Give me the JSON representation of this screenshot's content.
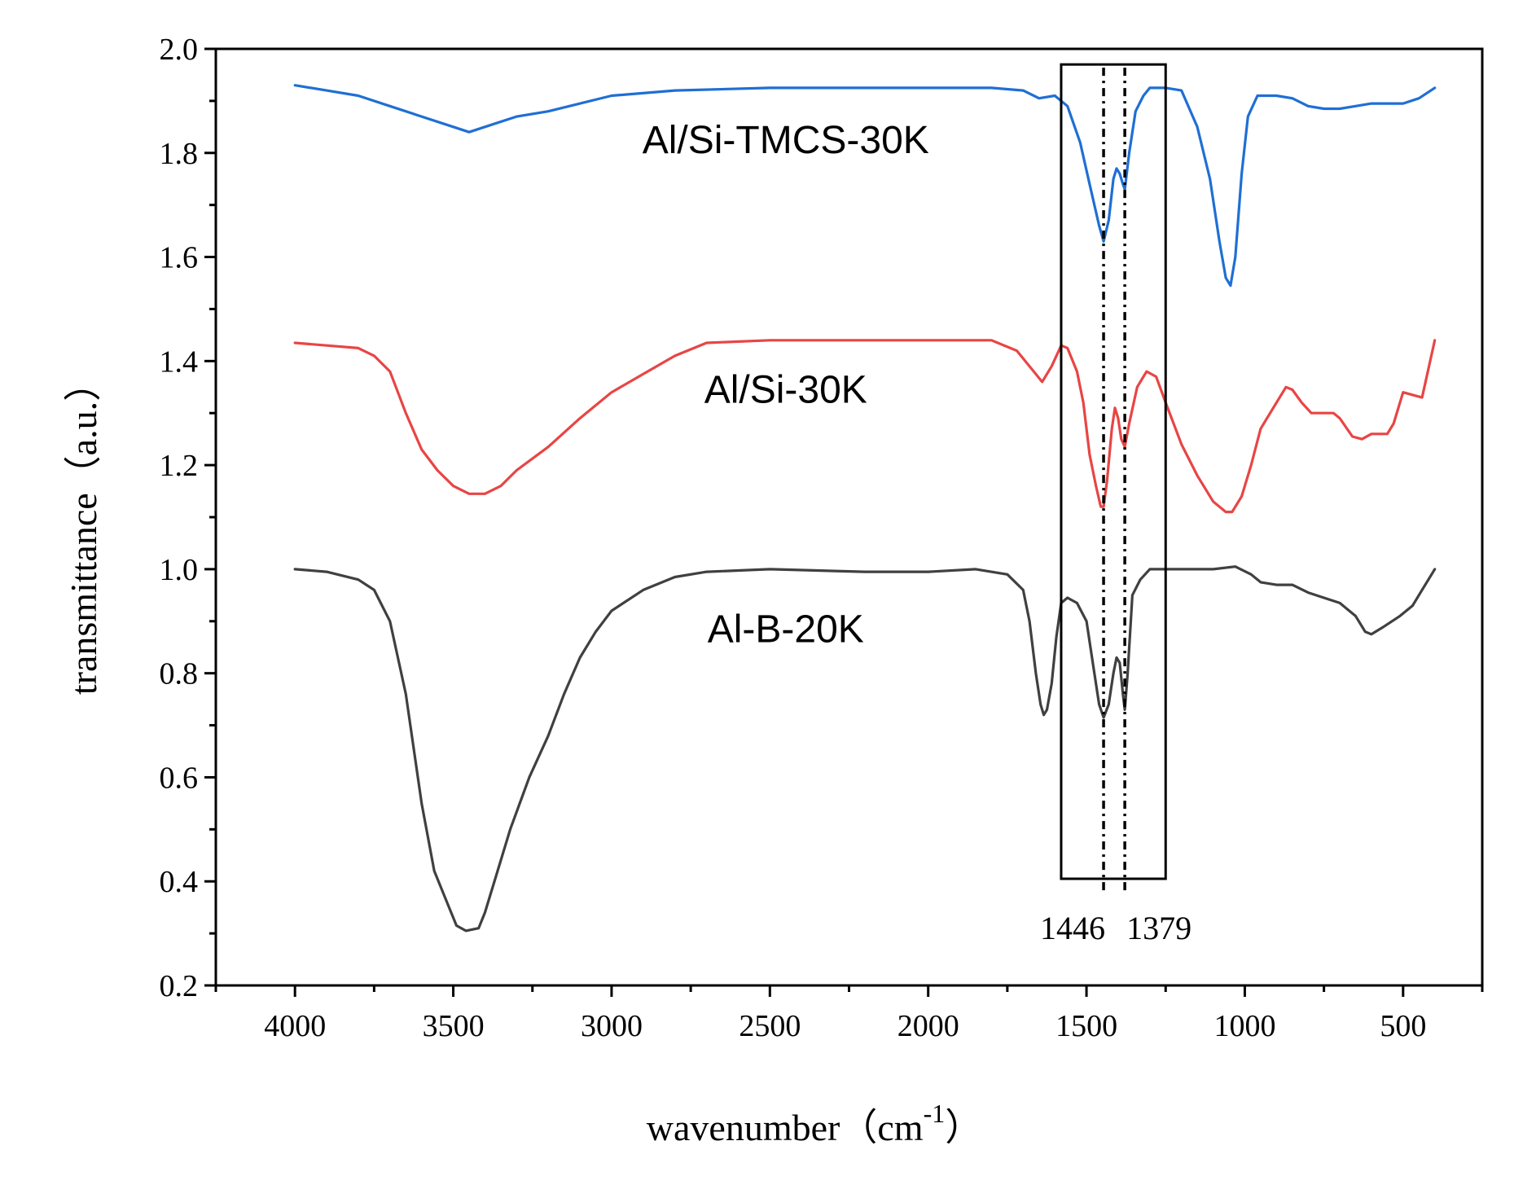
{
  "chart_data": {
    "type": "line",
    "title": "",
    "xlabel": "wavenumber（cm",
    "xlabel_sup": "-1",
    "xlabel_close": "）",
    "ylabel": "transmittance（a.u.）",
    "xlim": [
      4250,
      250
    ],
    "ylim": [
      0.2,
      2.0
    ],
    "x_ticks": [
      4000,
      3500,
      3000,
      2500,
      2000,
      1500,
      1000,
      500
    ],
    "x_tick_labels": [
      "4000",
      "3500",
      "3000",
      "2500",
      "2000",
      "1500",
      "1000",
      "500"
    ],
    "y_ticks": [
      0.2,
      0.4,
      0.6,
      0.8,
      1.0,
      1.2,
      1.4,
      1.6,
      1.8,
      2.0
    ],
    "y_tick_labels": [
      "0.2",
      "0.4",
      "0.6",
      "0.8",
      "1.0",
      "1.2",
      "1.4",
      "1.6",
      "1.8",
      "2.0"
    ],
    "grid": false,
    "series": [
      {
        "name": "Al/Si-TMCS-30K",
        "color": "#1f6fd4",
        "label_at": [
          2450,
          1.8
        ],
        "points": [
          [
            4000,
            1.93
          ],
          [
            3900,
            1.92
          ],
          [
            3800,
            1.91
          ],
          [
            3700,
            1.89
          ],
          [
            3600,
            1.87
          ],
          [
            3500,
            1.85
          ],
          [
            3450,
            1.84
          ],
          [
            3400,
            1.85
          ],
          [
            3300,
            1.87
          ],
          [
            3200,
            1.88
          ],
          [
            3000,
            1.91
          ],
          [
            2800,
            1.92
          ],
          [
            2500,
            1.925
          ],
          [
            2200,
            1.925
          ],
          [
            2000,
            1.925
          ],
          [
            1800,
            1.925
          ],
          [
            1700,
            1.92
          ],
          [
            1650,
            1.905
          ],
          [
            1600,
            1.91
          ],
          [
            1560,
            1.89
          ],
          [
            1520,
            1.82
          ],
          [
            1490,
            1.74
          ],
          [
            1460,
            1.66
          ],
          [
            1446,
            1.63
          ],
          [
            1430,
            1.67
          ],
          [
            1415,
            1.75
          ],
          [
            1405,
            1.77
          ],
          [
            1395,
            1.76
          ],
          [
            1385,
            1.74
          ],
          [
            1379,
            1.73
          ],
          [
            1365,
            1.8
          ],
          [
            1345,
            1.88
          ],
          [
            1320,
            1.91
          ],
          [
            1300,
            1.925
          ],
          [
            1250,
            1.925
          ],
          [
            1200,
            1.92
          ],
          [
            1150,
            1.85
          ],
          [
            1110,
            1.75
          ],
          [
            1080,
            1.63
          ],
          [
            1060,
            1.56
          ],
          [
            1045,
            1.545
          ],
          [
            1030,
            1.6
          ],
          [
            1010,
            1.76
          ],
          [
            990,
            1.87
          ],
          [
            960,
            1.91
          ],
          [
            900,
            1.91
          ],
          [
            850,
            1.905
          ],
          [
            800,
            1.89
          ],
          [
            750,
            1.885
          ],
          [
            700,
            1.885
          ],
          [
            650,
            1.89
          ],
          [
            600,
            1.895
          ],
          [
            500,
            1.895
          ],
          [
            450,
            1.905
          ],
          [
            400,
            1.925
          ]
        ]
      },
      {
        "name": "Al/Si-30K",
        "color": "#e84545",
        "label_at": [
          2450,
          1.32
        ],
        "points": [
          [
            4000,
            1.435
          ],
          [
            3900,
            1.43
          ],
          [
            3800,
            1.425
          ],
          [
            3750,
            1.41
          ],
          [
            3700,
            1.38
          ],
          [
            3650,
            1.3
          ],
          [
            3600,
            1.23
          ],
          [
            3550,
            1.19
          ],
          [
            3500,
            1.16
          ],
          [
            3450,
            1.145
          ],
          [
            3400,
            1.145
          ],
          [
            3350,
            1.16
          ],
          [
            3300,
            1.19
          ],
          [
            3200,
            1.235
          ],
          [
            3100,
            1.29
          ],
          [
            3000,
            1.34
          ],
          [
            2900,
            1.375
          ],
          [
            2800,
            1.41
          ],
          [
            2700,
            1.435
          ],
          [
            2500,
            1.44
          ],
          [
            2200,
            1.44
          ],
          [
            2000,
            1.44
          ],
          [
            1800,
            1.44
          ],
          [
            1720,
            1.42
          ],
          [
            1680,
            1.39
          ],
          [
            1640,
            1.36
          ],
          [
            1610,
            1.39
          ],
          [
            1580,
            1.43
          ],
          [
            1560,
            1.425
          ],
          [
            1530,
            1.38
          ],
          [
            1510,
            1.32
          ],
          [
            1490,
            1.22
          ],
          [
            1470,
            1.16
          ],
          [
            1455,
            1.12
          ],
          [
            1446,
            1.12
          ],
          [
            1435,
            1.17
          ],
          [
            1420,
            1.27
          ],
          [
            1410,
            1.31
          ],
          [
            1400,
            1.29
          ],
          [
            1390,
            1.25
          ],
          [
            1379,
            1.235
          ],
          [
            1365,
            1.28
          ],
          [
            1340,
            1.35
          ],
          [
            1310,
            1.38
          ],
          [
            1280,
            1.37
          ],
          [
            1250,
            1.32
          ],
          [
            1200,
            1.24
          ],
          [
            1150,
            1.18
          ],
          [
            1100,
            1.13
          ],
          [
            1060,
            1.11
          ],
          [
            1040,
            1.11
          ],
          [
            1010,
            1.14
          ],
          [
            980,
            1.2
          ],
          [
            950,
            1.27
          ],
          [
            900,
            1.32
          ],
          [
            870,
            1.35
          ],
          [
            850,
            1.345
          ],
          [
            820,
            1.32
          ],
          [
            790,
            1.3
          ],
          [
            720,
            1.3
          ],
          [
            700,
            1.29
          ],
          [
            660,
            1.255
          ],
          [
            630,
            1.25
          ],
          [
            600,
            1.26
          ],
          [
            550,
            1.26
          ],
          [
            530,
            1.28
          ],
          [
            500,
            1.34
          ],
          [
            470,
            1.335
          ],
          [
            440,
            1.33
          ],
          [
            400,
            1.44
          ]
        ]
      },
      {
        "name": "Al-B-20K",
        "color": "#404040",
        "label_at": [
          2450,
          0.86
        ],
        "points": [
          [
            4000,
            1.0
          ],
          [
            3900,
            0.995
          ],
          [
            3800,
            0.98
          ],
          [
            3750,
            0.96
          ],
          [
            3700,
            0.9
          ],
          [
            3650,
            0.76
          ],
          [
            3600,
            0.55
          ],
          [
            3560,
            0.42
          ],
          [
            3520,
            0.36
          ],
          [
            3490,
            0.315
          ],
          [
            3460,
            0.305
          ],
          [
            3420,
            0.31
          ],
          [
            3400,
            0.34
          ],
          [
            3360,
            0.42
          ],
          [
            3320,
            0.5
          ],
          [
            3260,
            0.6
          ],
          [
            3200,
            0.68
          ],
          [
            3150,
            0.76
          ],
          [
            3100,
            0.83
          ],
          [
            3050,
            0.88
          ],
          [
            3000,
            0.92
          ],
          [
            2900,
            0.96
          ],
          [
            2800,
            0.985
          ],
          [
            2700,
            0.995
          ],
          [
            2500,
            1.0
          ],
          [
            2200,
            0.995
          ],
          [
            2000,
            0.995
          ],
          [
            1850,
            1.0
          ],
          [
            1750,
            0.99
          ],
          [
            1700,
            0.96
          ],
          [
            1680,
            0.9
          ],
          [
            1660,
            0.8
          ],
          [
            1645,
            0.74
          ],
          [
            1635,
            0.72
          ],
          [
            1625,
            0.73
          ],
          [
            1610,
            0.78
          ],
          [
            1595,
            0.87
          ],
          [
            1580,
            0.935
          ],
          [
            1560,
            0.945
          ],
          [
            1530,
            0.935
          ],
          [
            1500,
            0.9
          ],
          [
            1480,
            0.82
          ],
          [
            1460,
            0.74
          ],
          [
            1446,
            0.715
          ],
          [
            1430,
            0.74
          ],
          [
            1415,
            0.8
          ],
          [
            1405,
            0.83
          ],
          [
            1395,
            0.82
          ],
          [
            1385,
            0.76
          ],
          [
            1379,
            0.73
          ],
          [
            1370,
            0.8
          ],
          [
            1355,
            0.95
          ],
          [
            1330,
            0.98
          ],
          [
            1300,
            1.0
          ],
          [
            1200,
            1.0
          ],
          [
            1100,
            1.0
          ],
          [
            1030,
            1.005
          ],
          [
            980,
            0.99
          ],
          [
            950,
            0.975
          ],
          [
            900,
            0.97
          ],
          [
            850,
            0.97
          ],
          [
            800,
            0.955
          ],
          [
            750,
            0.945
          ],
          [
            700,
            0.935
          ],
          [
            650,
            0.91
          ],
          [
            620,
            0.88
          ],
          [
            600,
            0.875
          ],
          [
            560,
            0.89
          ],
          [
            510,
            0.91
          ],
          [
            470,
            0.93
          ],
          [
            440,
            0.96
          ],
          [
            400,
            1.0
          ]
        ]
      }
    ],
    "annotation_box": {
      "x_from": 1580,
      "x_to": 1250,
      "y_from": 0.405,
      "y_to": 1.97
    },
    "markers": [
      {
        "x": 1446,
        "label": "1446"
      },
      {
        "x": 1379,
        "label": "1379"
      }
    ]
  }
}
